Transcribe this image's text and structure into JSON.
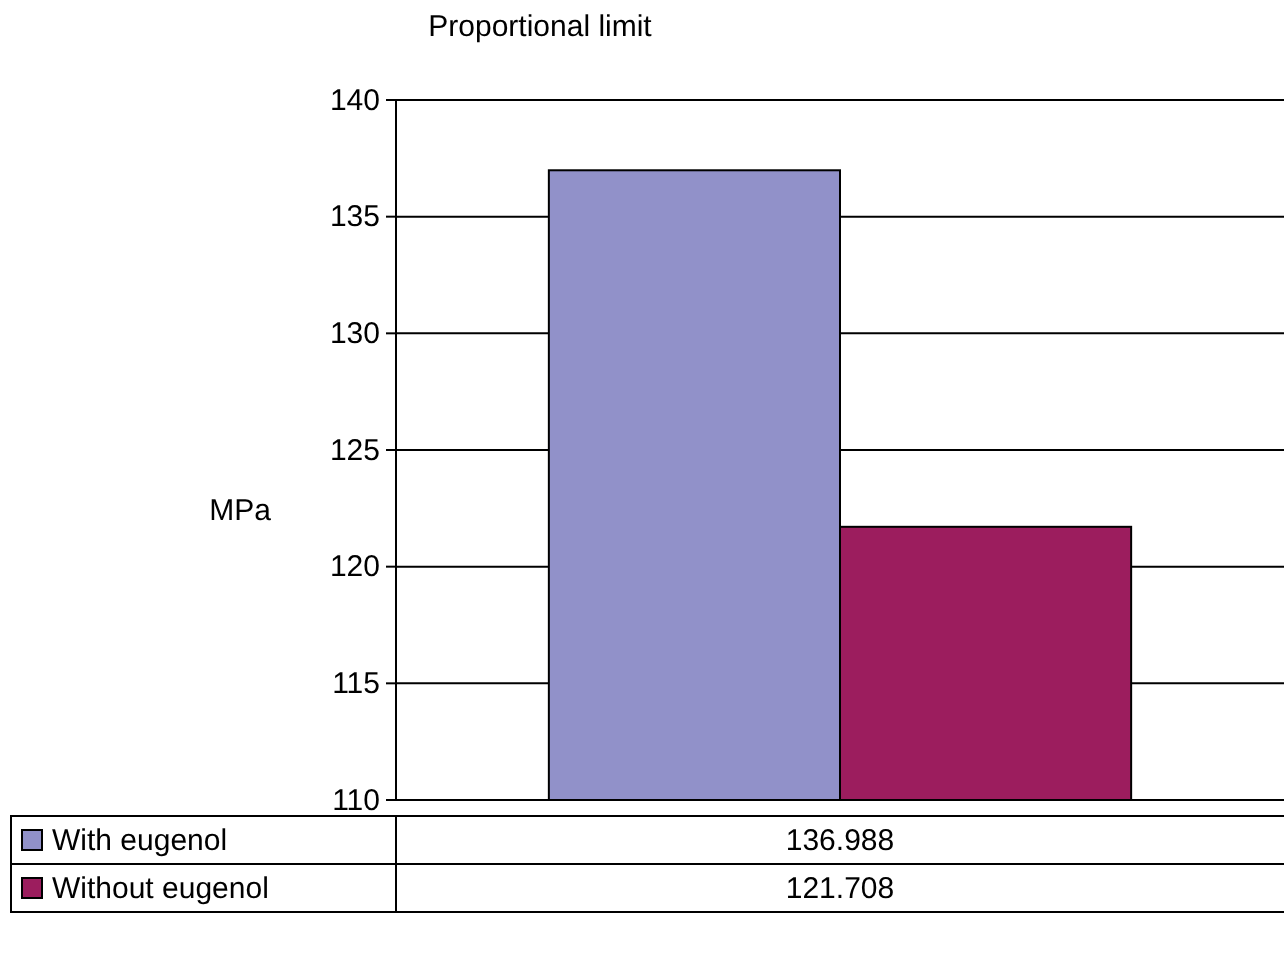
{
  "chart_data": {
    "type": "bar",
    "title": "Proportional limit",
    "ylabel": "MPa",
    "categories": [
      null
    ],
    "series": [
      {
        "name": "With eugenol",
        "color": "#9191c9",
        "values": [
          136.988
        ]
      },
      {
        "name": "Without eugenol",
        "color": "#9c1d5e",
        "values": [
          121.708
        ]
      }
    ],
    "ylim": [
      110,
      140
    ],
    "yticks": [
      110,
      115,
      120,
      125,
      130,
      135,
      140
    ],
    "grid": "y",
    "legend": "bottom",
    "data_labels": true
  }
}
